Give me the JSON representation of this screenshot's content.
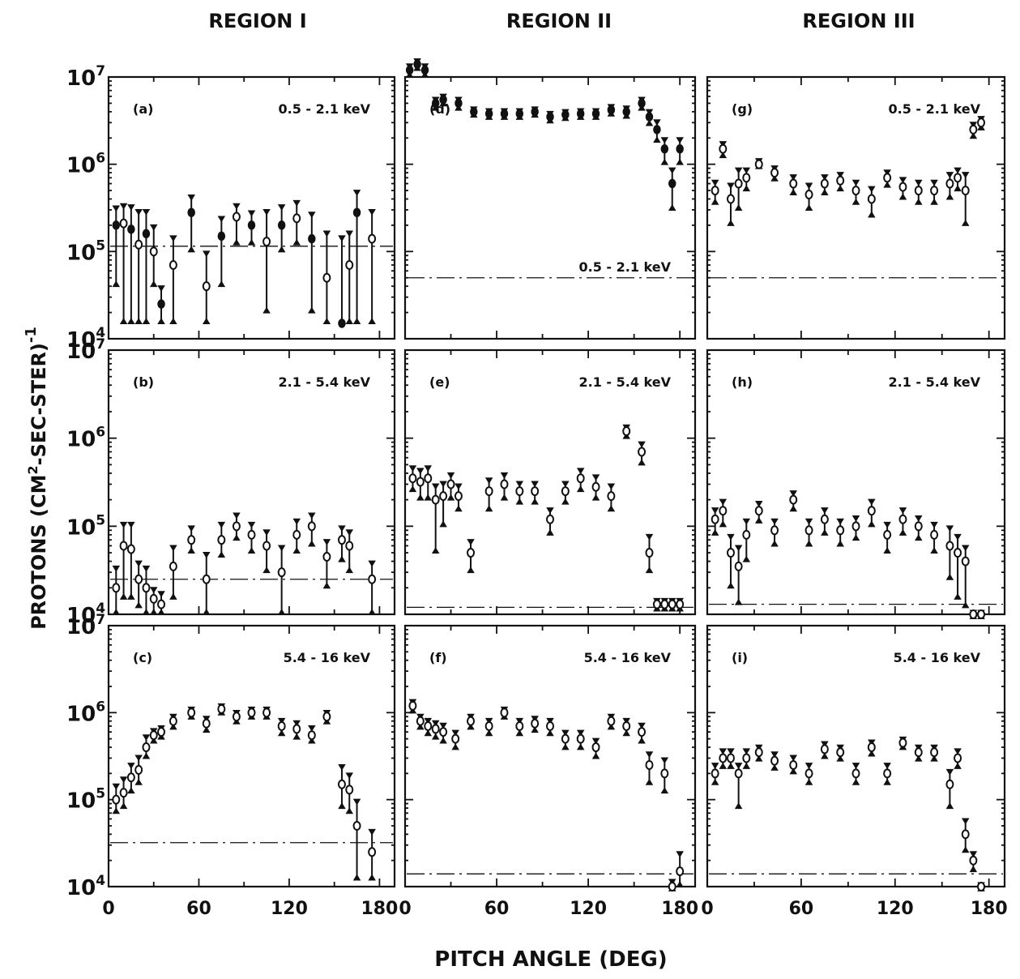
{
  "columns": [
    "REGION I",
    "REGION II",
    "REGION III"
  ],
  "xlabel": "PITCH ANGLE (DEG)",
  "ylabel": "PROTONS (CM²-SEC-STER)⁻¹",
  "ylabel_parts": {
    "main": "PROTONS (CM",
    "sup1": "2",
    "mid": "-SEC-STER)",
    "sup2": "-1"
  },
  "x_ticks": [
    "0",
    "60",
    "120",
    "180"
  ],
  "y_ticks": [
    {
      "base": "10",
      "exp": "7"
    },
    {
      "base": "10",
      "exp": "6"
    },
    {
      "base": "10",
      "exp": "5"
    },
    {
      "base": "10",
      "exp": "4"
    }
  ],
  "chart_data": [
    {
      "type": "scatter",
      "panel": "(a)",
      "energy": "0.5 - 2.1 keV",
      "xlim": [
        0,
        190
      ],
      "ylim": [
        10000,
        10000000
      ],
      "yscale": "log",
      "background": 115000,
      "marker": "mixed",
      "x": [
        5,
        10,
        15,
        20,
        25,
        30,
        35,
        43,
        55,
        65,
        75,
        85,
        95,
        105,
        115,
        125,
        135,
        145,
        155,
        160,
        165,
        175
      ],
      "y": [
        200000,
        210000,
        180000,
        120000,
        160000,
        100000,
        25000,
        70000,
        280000,
        40000,
        150000,
        250000,
        200000,
        130000,
        200000,
        240000,
        140000,
        50000,
        15000,
        70000,
        280000,
        140000
      ],
      "y_low": [
        40000,
        15000,
        15000,
        15000,
        15000,
        40000,
        15000,
        15000,
        100000,
        15000,
        40000,
        120000,
        120000,
        20000,
        100000,
        120000,
        20000,
        15000,
        15000,
        15000,
        15000,
        15000
      ],
      "y_high": [
        330000,
        350000,
        340000,
        300000,
        300000,
        200000,
        40000,
        150000,
        440000,
        100000,
        250000,
        350000,
        290000,
        300000,
        340000,
        380000,
        280000,
        170000,
        150000,
        170000,
        500000,
        300000
      ]
    },
    {
      "type": "scatter",
      "panel": "(b)",
      "energy": "2.1 - 5.4 keV",
      "xlim": [
        0,
        190
      ],
      "ylim": [
        10000,
        10000000
      ],
      "yscale": "log",
      "background": 25000,
      "marker": "open",
      "x": [
        5,
        10,
        15,
        20,
        25,
        30,
        35,
        43,
        55,
        65,
        75,
        85,
        95,
        105,
        115,
        125,
        135,
        145,
        155,
        160,
        175
      ],
      "y": [
        20000,
        60000,
        55000,
        25000,
        20000,
        15000,
        13000,
        35000,
        70000,
        25000,
        70000,
        100000,
        80000,
        60000,
        30000,
        80000,
        100000,
        45000,
        70000,
        60000,
        25000
      ],
      "y_low": [
        10000,
        15000,
        15000,
        12000,
        10000,
        10000,
        10000,
        15000,
        50000,
        10000,
        45000,
        70000,
        50000,
        30000,
        10000,
        50000,
        60000,
        20000,
        40000,
        30000,
        10000
      ],
      "y_high": [
        35000,
        110000,
        110000,
        40000,
        35000,
        20000,
        18000,
        60000,
        100000,
        50000,
        110000,
        140000,
        110000,
        90000,
        60000,
        120000,
        140000,
        70000,
        100000,
        90000,
        40000
      ]
    },
    {
      "type": "scatter",
      "panel": "(c)",
      "energy": "5.4 - 16 keV",
      "xlim": [
        0,
        190
      ],
      "ylim": [
        10000,
        10000000
      ],
      "yscale": "log",
      "background": 32000,
      "marker": "open",
      "x": [
        5,
        10,
        15,
        20,
        25,
        30,
        35,
        43,
        55,
        65,
        75,
        85,
        95,
        105,
        115,
        125,
        135,
        145,
        155,
        160,
        165,
        175
      ],
      "y": [
        100000,
        120000,
        180000,
        220000,
        400000,
        550000,
        600000,
        800000,
        1000000,
        750000,
        1100000,
        900000,
        1000000,
        1000000,
        700000,
        650000,
        550000,
        900000,
        150000,
        130000,
        50000,
        25000
      ],
      "y_low": [
        70000,
        80000,
        120000,
        150000,
        300000,
        450000,
        500000,
        650000,
        850000,
        600000,
        950000,
        750000,
        850000,
        850000,
        550000,
        500000,
        450000,
        750000,
        80000,
        70000,
        12000,
        12000
      ],
      "y_high": [
        150000,
        180000,
        260000,
        320000,
        550000,
        650000,
        700000,
        950000,
        1150000,
        900000,
        1250000,
        1050000,
        1150000,
        1150000,
        850000,
        800000,
        700000,
        1050000,
        250000,
        200000,
        100000,
        45000
      ]
    },
    {
      "type": "scatter",
      "panel": "(d)",
      "energy": "0.5 - 2.1 keV",
      "xlim": [
        0,
        190
      ],
      "ylim": [
        10000,
        10000000
      ],
      "yscale": "log",
      "background": 50000,
      "marker": "filled",
      "x": [
        3,
        8,
        13,
        20,
        25,
        35,
        45,
        55,
        65,
        75,
        85,
        95,
        105,
        115,
        125,
        135,
        145,
        155,
        160,
        165,
        170,
        175,
        180
      ],
      "y": [
        12000000,
        14000000,
        12000000,
        5000000,
        5500000,
        5000000,
        4000000,
        3800000,
        3800000,
        3800000,
        4000000,
        3500000,
        3700000,
        3800000,
        3800000,
        4200000,
        4000000,
        5000000,
        3500000,
        2500000,
        1500000,
        600000,
        1500000
      ],
      "y_low": [
        10000000,
        12000000,
        10000000,
        4200000,
        4700000,
        4200000,
        3500000,
        3300000,
        3300000,
        3300000,
        3500000,
        3000000,
        3200000,
        3300000,
        3300000,
        3600000,
        3400000,
        4200000,
        2800000,
        1800000,
        1000000,
        300000,
        1000000
      ],
      "y_high": [
        14000000,
        16000000,
        14000000,
        5800000,
        6300000,
        5800000,
        4500000,
        4300000,
        4300000,
        4300000,
        4500000,
        4000000,
        4200000,
        4300000,
        4300000,
        4800000,
        4600000,
        5800000,
        4200000,
        3200000,
        2000000,
        900000,
        2000000
      ]
    },
    {
      "type": "scatter",
      "panel": "(e)",
      "energy": "2.1 - 5.4 keV",
      "xlim": [
        0,
        190
      ],
      "ylim": [
        10000,
        10000000
      ],
      "yscale": "log",
      "background": 12000,
      "marker": "open",
      "x": [
        5,
        10,
        15,
        20,
        25,
        30,
        35,
        43,
        55,
        65,
        75,
        85,
        95,
        105,
        115,
        125,
        135,
        145,
        155,
        160,
        165,
        170,
        175,
        180
      ],
      "y": [
        350000,
        320000,
        350000,
        200000,
        220000,
        300000,
        220000,
        50000,
        250000,
        300000,
        250000,
        250000,
        120000,
        250000,
        350000,
        280000,
        220000,
        1200000,
        700000,
        50000,
        13000,
        13000,
        13000,
        13000
      ],
      "y_low": [
        250000,
        200000,
        200000,
        50000,
        100000,
        200000,
        150000,
        30000,
        150000,
        200000,
        180000,
        180000,
        80000,
        180000,
        250000,
        200000,
        150000,
        1000000,
        500000,
        30000,
        11000,
        11000,
        11000,
        11000
      ],
      "y_high": [
        480000,
        450000,
        480000,
        300000,
        320000,
        400000,
        300000,
        70000,
        350000,
        400000,
        320000,
        320000,
        160000,
        320000,
        450000,
        380000,
        300000,
        1400000,
        900000,
        80000,
        15000,
        15000,
        15000,
        15000
      ]
    },
    {
      "type": "scatter",
      "panel": "(f)",
      "energy": "5.4 - 16 keV",
      "xlim": [
        0,
        190
      ],
      "ylim": [
        10000,
        10000000
      ],
      "yscale": "log",
      "background": 14000,
      "marker": "open",
      "x": [
        5,
        10,
        15,
        20,
        25,
        33,
        43,
        55,
        65,
        75,
        85,
        95,
        105,
        115,
        125,
        135,
        145,
        155,
        160,
        170,
        175,
        180
      ],
      "y": [
        1200000,
        800000,
        700000,
        650000,
        600000,
        500000,
        800000,
        700000,
        1000000,
        700000,
        750000,
        700000,
        500000,
        500000,
        400000,
        800000,
        700000,
        600000,
        250000,
        200000,
        10000,
        15000
      ],
      "y_low": [
        1000000,
        650000,
        550000,
        500000,
        450000,
        380000,
        650000,
        550000,
        850000,
        550000,
        600000,
        550000,
        380000,
        380000,
        300000,
        650000,
        550000,
        450000,
        150000,
        120000,
        9000,
        10000
      ],
      "y_high": [
        1400000,
        950000,
        850000,
        800000,
        750000,
        620000,
        950000,
        850000,
        1150000,
        850000,
        900000,
        850000,
        620000,
        620000,
        500000,
        950000,
        850000,
        750000,
        350000,
        300000,
        12000,
        25000
      ]
    },
    {
      "type": "scatter",
      "panel": "(g)",
      "energy": "0.5 - 2.1 keV",
      "xlim": [
        0,
        190
      ],
      "ylim": [
        10000,
        10000000
      ],
      "yscale": "log",
      "background": 50000,
      "marker": "open",
      "x": [
        5,
        10,
        15,
        20,
        25,
        33,
        43,
        55,
        65,
        75,
        85,
        95,
        105,
        115,
        125,
        135,
        145,
        155,
        160,
        165,
        170,
        175
      ],
      "y": [
        500000,
        1500000,
        400000,
        600000,
        700000,
        1000000,
        800000,
        600000,
        450000,
        600000,
        650000,
        500000,
        400000,
        700000,
        550000,
        500000,
        500000,
        600000,
        700000,
        500000,
        2500000,
        3000000
      ],
      "y_low": [
        350000,
        1200000,
        200000,
        300000,
        500000,
        900000,
        650000,
        450000,
        300000,
        450000,
        500000,
        350000,
        250000,
        550000,
        400000,
        350000,
        350000,
        400000,
        500000,
        200000,
        2000000,
        2500000
      ],
      "y_high": [
        650000,
        1800000,
        600000,
        900000,
        900000,
        1150000,
        950000,
        750000,
        600000,
        750000,
        800000,
        650000,
        550000,
        850000,
        700000,
        650000,
        650000,
        800000,
        900000,
        800000,
        3000000,
        3500000
      ]
    },
    {
      "type": "scatter",
      "panel": "(h)",
      "energy": "2.1 - 5.4 keV",
      "xlim": [
        0,
        190
      ],
      "ylim": [
        10000,
        10000000
      ],
      "yscale": "log",
      "background": 13000,
      "marker": "open",
      "x": [
        5,
        10,
        15,
        20,
        25,
        33,
        43,
        55,
        65,
        75,
        85,
        95,
        105,
        115,
        125,
        135,
        145,
        155,
        160,
        165,
        170,
        175
      ],
      "y": [
        120000,
        150000,
        50000,
        35000,
        80000,
        150000,
        90000,
        200000,
        90000,
        120000,
        90000,
        100000,
        150000,
        80000,
        120000,
        100000,
        80000,
        60000,
        50000,
        40000,
        10000,
        10000
      ],
      "y_low": [
        80000,
        100000,
        20000,
        13000,
        40000,
        110000,
        60000,
        150000,
        60000,
        80000,
        60000,
        70000,
        100000,
        50000,
        80000,
        70000,
        50000,
        25000,
        15000,
        12000,
        9000,
        9000
      ],
      "y_high": [
        160000,
        200000,
        80000,
        60000,
        120000,
        190000,
        120000,
        250000,
        120000,
        160000,
        120000,
        130000,
        200000,
        110000,
        160000,
        130000,
        110000,
        100000,
        80000,
        60000,
        11000,
        11000
      ]
    },
    {
      "type": "scatter",
      "panel": "(i)",
      "energy": "5.4 - 16 keV",
      "xlim": [
        0,
        190
      ],
      "ylim": [
        10000,
        10000000
      ],
      "yscale": "log",
      "background": 14000,
      "marker": "open",
      "x": [
        5,
        10,
        15,
        20,
        25,
        33,
        43,
        55,
        65,
        75,
        85,
        95,
        105,
        115,
        125,
        135,
        145,
        155,
        160,
        165,
        170,
        175
      ],
      "y": [
        200000,
        300000,
        300000,
        200000,
        300000,
        350000,
        280000,
        250000,
        200000,
        380000,
        350000,
        200000,
        400000,
        200000,
        450000,
        350000,
        350000,
        150000,
        300000,
        40000,
        20000,
        10000
      ],
      "y_low": [
        150000,
        230000,
        230000,
        80000,
        230000,
        280000,
        220000,
        200000,
        150000,
        300000,
        280000,
        150000,
        320000,
        150000,
        380000,
        280000,
        280000,
        80000,
        230000,
        25000,
        15000,
        9000
      ],
      "y_high": [
        260000,
        380000,
        380000,
        260000,
        380000,
        420000,
        350000,
        320000,
        260000,
        460000,
        420000,
        260000,
        480000,
        260000,
        520000,
        420000,
        420000,
        220000,
        380000,
        60000,
        25000,
        11000
      ]
    }
  ]
}
